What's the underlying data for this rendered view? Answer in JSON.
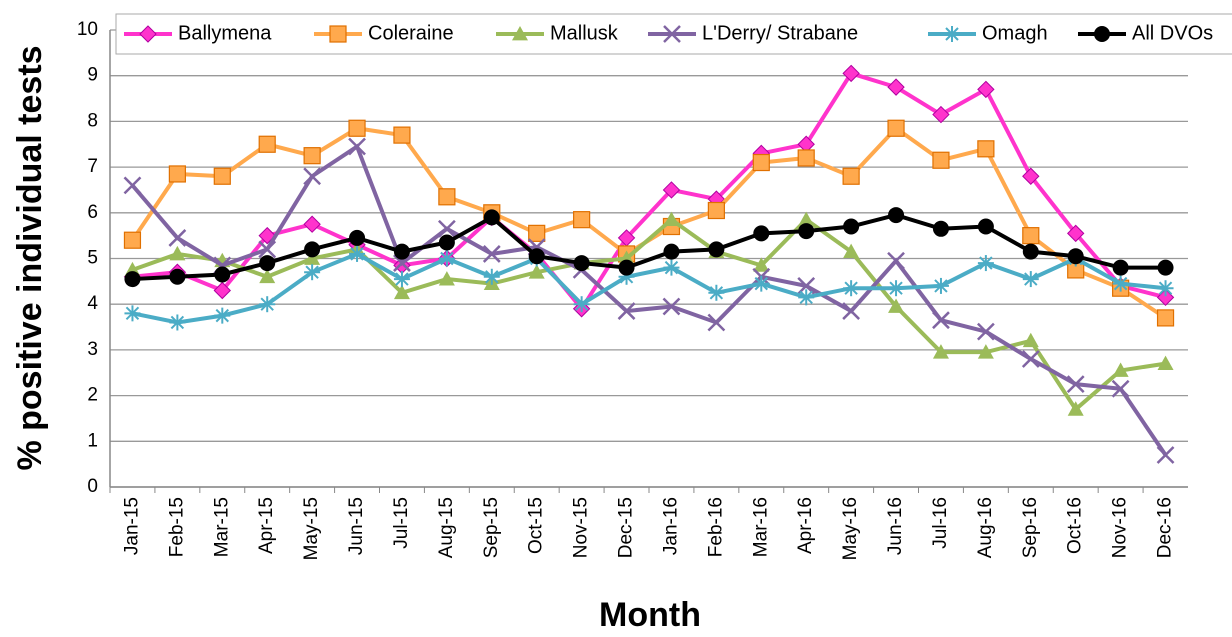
{
  "chart_data": {
    "type": "line",
    "x_label": "Month",
    "y_label": "% positive individual tests",
    "categories": [
      "Jan-15",
      "Feb-15",
      "Mar-15",
      "Apr-15",
      "May-15",
      "Jun-15",
      "Jul-15",
      "Aug-15",
      "Sep-15",
      "Oct-15",
      "Nov-15",
      "Dec-15",
      "Jan-16",
      "Feb-16",
      "Mar-16",
      "Apr-16",
      "May-16",
      "Jun-16",
      "Jul-16",
      "Aug-16",
      "Sep-16",
      "Oct-16",
      "Nov-16",
      "Dec-16"
    ],
    "series": [
      {
        "name": "Ballymena",
        "color": "#ff33cc",
        "marker": "diamond",
        "values": [
          4.6,
          4.7,
          4.3,
          5.5,
          5.75,
          5.3,
          4.85,
          5.0,
          5.9,
          5.1,
          3.9,
          5.45,
          6.5,
          6.3,
          7.3,
          7.5,
          9.05,
          8.75,
          8.15,
          8.7,
          6.8,
          5.55,
          4.4,
          4.15
        ]
      },
      {
        "name": "Coleraine",
        "color": "#ffa94d",
        "marker": "square",
        "values": [
          5.4,
          6.85,
          6.8,
          7.5,
          7.25,
          7.85,
          7.7,
          6.35,
          6.0,
          5.55,
          5.85,
          5.1,
          5.7,
          6.05,
          7.1,
          7.2,
          6.8,
          7.85,
          7.15,
          7.4,
          5.5,
          4.75,
          4.35,
          3.7
        ]
      },
      {
        "name": "Mallusk",
        "color": "#9bbb59",
        "marker": "triangle",
        "values": [
          4.75,
          5.1,
          4.95,
          4.6,
          5.0,
          5.2,
          4.25,
          4.55,
          4.45,
          4.7,
          4.9,
          5.0,
          5.85,
          5.15,
          4.85,
          5.85,
          5.15,
          3.95,
          2.95,
          2.95,
          3.2,
          1.7,
          2.55,
          2.7
        ]
      },
      {
        "name": "L'Derry/ Strabane",
        "color": "#8064a2",
        "marker": "x",
        "values": [
          6.6,
          5.45,
          4.85,
          5.2,
          6.8,
          7.45,
          4.9,
          5.65,
          5.1,
          5.25,
          4.75,
          3.85,
          3.95,
          3.6,
          4.6,
          4.4,
          3.85,
          4.95,
          3.65,
          3.4,
          2.8,
          2.25,
          2.15,
          0.7
        ]
      },
      {
        "name": "Omagh",
        "color": "#4bacc6",
        "marker": "star",
        "values": [
          3.8,
          3.6,
          3.75,
          4.0,
          4.7,
          5.1,
          4.55,
          5.0,
          4.6,
          5.0,
          4.0,
          4.6,
          4.8,
          4.25,
          4.45,
          4.15,
          4.35,
          4.35,
          4.4,
          4.9,
          4.55,
          5.0,
          4.45,
          4.35
        ]
      },
      {
        "name": "All DVOs",
        "color": "#000000",
        "marker": "circle",
        "values": [
          4.55,
          4.6,
          4.65,
          4.9,
          5.2,
          5.45,
          5.15,
          5.35,
          5.9,
          5.05,
          4.9,
          4.8,
          5.15,
          5.2,
          5.55,
          5.6,
          5.7,
          5.95,
          5.65,
          5.7,
          5.15,
          5.05,
          4.8,
          4.8
        ]
      }
    ],
    "ylim": [
      0,
      10
    ],
    "yticks": [
      0,
      1,
      2,
      3,
      4,
      5,
      6,
      7,
      8,
      9,
      10
    ],
    "grid": true,
    "legend": "top"
  }
}
